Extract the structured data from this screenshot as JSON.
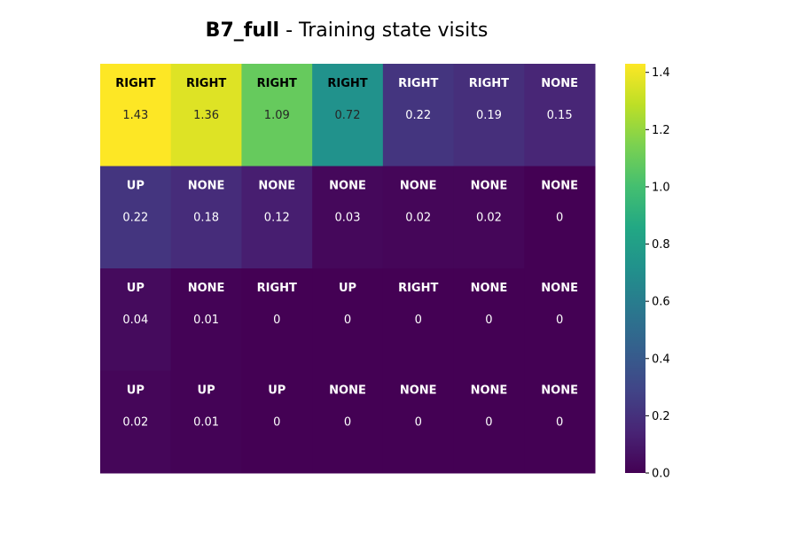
{
  "title": {
    "bold_part": "B7_full",
    "rest": " - Training state visits"
  },
  "chart_data": {
    "type": "heatmap",
    "rows": 4,
    "cols": 7,
    "actions": [
      [
        "RIGHT",
        "RIGHT",
        "RIGHT",
        "RIGHT",
        "RIGHT",
        "RIGHT",
        "NONE"
      ],
      [
        "UP",
        "NONE",
        "NONE",
        "NONE",
        "NONE",
        "NONE",
        "NONE"
      ],
      [
        "UP",
        "NONE",
        "RIGHT",
        "UP",
        "RIGHT",
        "NONE",
        "NONE"
      ],
      [
        "UP",
        "UP",
        "UP",
        "NONE",
        "NONE",
        "NONE",
        "NONE"
      ]
    ],
    "values": [
      [
        1.43,
        1.36,
        1.09,
        0.72,
        0.22,
        0.19,
        0.15
      ],
      [
        0.22,
        0.18,
        0.12,
        0.03,
        0.02,
        0.02,
        0
      ],
      [
        0.04,
        0.01,
        0,
        0,
        0,
        0,
        0
      ],
      [
        0.02,
        0.01,
        0,
        0,
        0,
        0,
        0
      ]
    ],
    "colormap": "viridis",
    "vmin": 0.0,
    "vmax": 1.43,
    "colorbar_ticks": [
      "0.0",
      "0.2",
      "0.4",
      "0.6",
      "0.8",
      "1.0",
      "1.2",
      "1.4"
    ],
    "colorbar_tick_values": [
      0.0,
      0.2,
      0.4,
      0.6,
      0.8,
      1.0,
      1.2,
      1.4
    ]
  }
}
